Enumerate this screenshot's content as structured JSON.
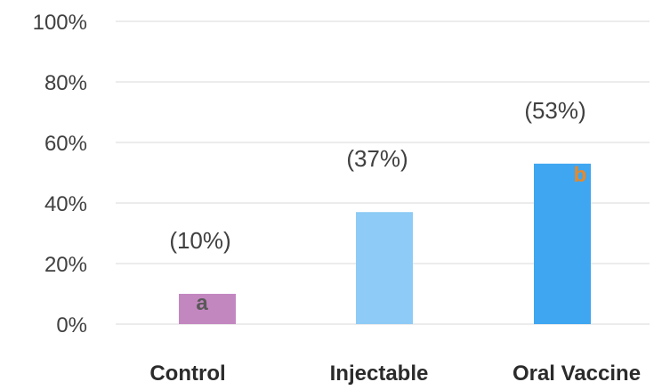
{
  "chart_data": {
    "type": "bar",
    "categories": [
      "Control",
      "Injectable",
      "Oral Vaccine"
    ],
    "values": [
      10,
      37,
      53
    ],
    "data_labels": [
      "(10%)",
      "(37%)",
      "(53%)"
    ],
    "letters": [
      "a",
      "",
      "b"
    ],
    "y_ticks": [
      "0%",
      "20%",
      "40%",
      "60%",
      "80%",
      "100%"
    ],
    "ylim": [
      0,
      100
    ],
    "grid": true,
    "colors": [
      "#c387c0",
      "#8ecbf6",
      "#3fa6f1"
    ],
    "letter_colors": [
      "#595959",
      "#595959",
      "#e6892a"
    ]
  }
}
